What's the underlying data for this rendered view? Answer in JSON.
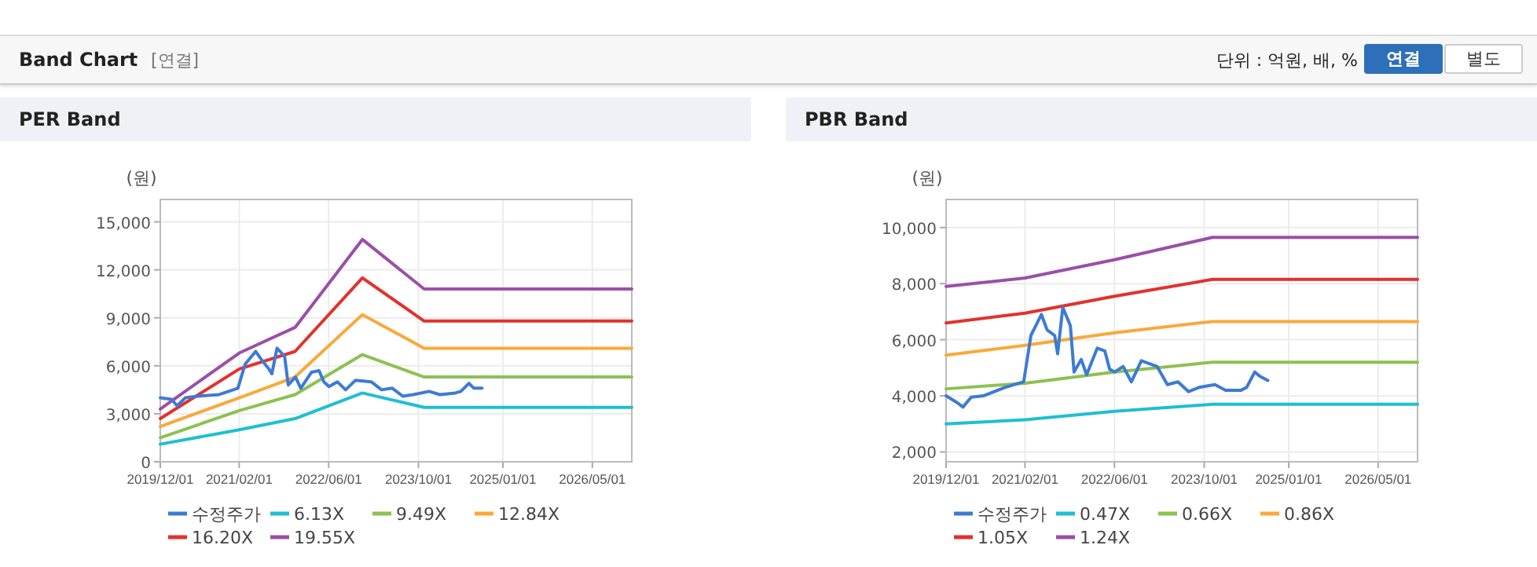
{
  "chart_data": [
    {
      "type": "other",
      "title": "Band Chart",
      "annotations": [
        "[연결]",
        "단위 : 억원, 배, %",
        "연결",
        "별도"
      ]
    },
    {
      "type": "line",
      "title": "PER Band",
      "ylabel": "(원)",
      "grid": true,
      "legend": "bottom",
      "line_style": "solid",
      "marker": "none",
      "xlim": [
        "2019-12-01",
        "2026-12-01"
      ],
      "xticks": [
        {
          "value": "2019-12-01",
          "label": "2019/12/01"
        },
        {
          "value": "2021-02-01",
          "label": "2021/02/01"
        },
        {
          "value": "2022-06-01",
          "label": "2022/06/01"
        },
        {
          "value": "2023-10-01",
          "label": "2023/10/01"
        },
        {
          "value": "2025-01-01",
          "label": "2025/01/01"
        },
        {
          "value": "2026-05-01",
          "label": "2026/05/01"
        }
      ],
      "ylim": [
        0,
        16400
      ],
      "yticks": [
        0,
        {
          "value": 3000,
          "label": "3,000"
        },
        {
          "value": 6000,
          "label": "6,000"
        },
        {
          "value": 9000,
          "label": "9,000"
        },
        {
          "value": 12000,
          "label": "12,000"
        },
        {
          "value": 15000,
          "label": "15,000"
        }
      ],
      "series": [
        {
          "name": "수정주가",
          "color": "#3d7bd4",
          "x": [
            "2019-12-01",
            "2020-02-01",
            "2020-03-01",
            "2020-04-15",
            "2020-06-20",
            "2020-10-15",
            "2021-01-25",
            "2021-03-05",
            "2021-05-01",
            "2021-06-01",
            "2021-07-12",
            "2021-07-28",
            "2021-08-25",
            "2021-10-05",
            "2021-10-25",
            "2021-12-03",
            "2022-01-01",
            "2022-02-28",
            "2022-04-10",
            "2022-05-06",
            "2022-06-03",
            "2022-07-18",
            "2022-09-01",
            "2022-10-25",
            "2023-01-18",
            "2023-03-15",
            "2023-05-12",
            "2023-07-08",
            "2023-09-03",
            "2023-11-28",
            "2024-01-25",
            "2024-04-18",
            "2024-05-18",
            "2024-07-01",
            "2024-07-28",
            "2024-09-10"
          ],
          "values": [
            4000,
            3900,
            3500,
            4000,
            4100,
            4200,
            4600,
            6100,
            6900,
            6400,
            5800,
            5500,
            7100,
            6600,
            4800,
            5300,
            4600,
            5600,
            5700,
            5000,
            4700,
            5000,
            4500,
            5100,
            5000,
            4500,
            4600,
            4100,
            4200,
            4400,
            4200,
            4300,
            4400,
            4900,
            4600,
            4600
          ]
        },
        {
          "name": "6.13X",
          "color": "#1fbfd0",
          "x": [
            "2019-12-01",
            "2021-02-01",
            "2021-12-01",
            "2022-12-01",
            "2023-11-01",
            "2026-12-01"
          ],
          "values": [
            1100,
            2000,
            2700,
            4300,
            3400,
            3400
          ]
        },
        {
          "name": "9.49X",
          "color": "#8cc152",
          "x": [
            "2019-12-01",
            "2021-02-01",
            "2021-12-01",
            "2022-12-01",
            "2023-11-01",
            "2026-12-01"
          ],
          "values": [
            1500,
            3200,
            4200,
            6700,
            5300,
            5300
          ]
        },
        {
          "name": "12.84X",
          "color": "#f9a93a",
          "x": [
            "2019-12-01",
            "2021-02-01",
            "2021-12-01",
            "2022-12-01",
            "2023-11-01",
            "2026-12-01"
          ],
          "values": [
            2200,
            4000,
            5300,
            9200,
            7100,
            7100
          ]
        },
        {
          "name": "16.20X",
          "color": "#e3312d",
          "x": [
            "2019-12-01",
            "2021-02-01",
            "2021-12-01",
            "2022-12-01",
            "2023-11-01",
            "2026-12-01"
          ],
          "values": [
            2700,
            5800,
            6900,
            11500,
            8800,
            8800
          ]
        },
        {
          "name": "19.55X",
          "color": "#9b4fa8",
          "x": [
            "2019-12-01",
            "2021-02-01",
            "2021-12-01",
            "2022-12-01",
            "2023-11-01",
            "2026-12-01"
          ],
          "values": [
            3300,
            6800,
            8400,
            13900,
            10800,
            10800
          ]
        }
      ]
    },
    {
      "type": "line",
      "title": "PBR Band",
      "ylabel": "(원)",
      "grid": true,
      "legend": "bottom",
      "line_style": "solid",
      "marker": "none",
      "xlim": [
        "2019-12-01",
        "2026-12-01"
      ],
      "xticks": [
        {
          "value": "2019-12-01",
          "label": "2019/12/01"
        },
        {
          "value": "2021-02-01",
          "label": "2021/02/01"
        },
        {
          "value": "2022-06-01",
          "label": "2022/06/01"
        },
        {
          "value": "2023-10-01",
          "label": "2023/10/01"
        },
        {
          "value": "2025-01-01",
          "label": "2025/01/01"
        },
        {
          "value": "2026-05-01",
          "label": "2026/05/01"
        }
      ],
      "ylim": [
        1650,
        11000
      ],
      "yticks": [
        {
          "value": 2000,
          "label": "2,000"
        },
        {
          "value": 4000,
          "label": "4,000"
        },
        {
          "value": 6000,
          "label": "6,000"
        },
        {
          "value": 8000,
          "label": "8,000"
        },
        {
          "value": 10000,
          "label": "10,000"
        }
      ],
      "series": [
        {
          "name": "수정주가",
          "color": "#3d7bd4",
          "x": [
            "2019-12-01",
            "2020-02-01",
            "2020-03-01",
            "2020-04-15",
            "2020-06-20",
            "2020-10-15",
            "2021-01-25",
            "2021-03-05",
            "2021-05-01",
            "2021-06-01",
            "2021-07-12",
            "2021-07-28",
            "2021-08-25",
            "2021-10-05",
            "2021-10-25",
            "2021-12-03",
            "2022-01-01",
            "2022-02-28",
            "2022-04-10",
            "2022-05-06",
            "2022-06-03",
            "2022-07-18",
            "2022-09-01",
            "2022-10-25",
            "2023-01-18",
            "2023-03-15",
            "2023-05-12",
            "2023-07-08",
            "2023-09-03",
            "2023-11-28",
            "2024-01-25",
            "2024-04-18",
            "2024-05-18",
            "2024-07-01",
            "2024-07-28",
            "2024-09-10"
          ],
          "values": [
            4000,
            3750,
            3600,
            3950,
            4000,
            4300,
            4500,
            6150,
            6900,
            6350,
            6150,
            5500,
            7150,
            6500,
            4850,
            5300,
            4750,
            5700,
            5600,
            4950,
            4850,
            5050,
            4500,
            5250,
            5050,
            4400,
            4500,
            4150,
            4300,
            4400,
            4200,
            4200,
            4300,
            4850,
            4700,
            4550
          ]
        },
        {
          "name": "0.47X",
          "color": "#1fbfd0",
          "x": [
            "2019-12-01",
            "2021-02-01",
            "2022-06-01",
            "2023-11-15",
            "2026-12-01"
          ],
          "values": [
            3000,
            3150,
            3450,
            3700,
            3700
          ]
        },
        {
          "name": "0.66X",
          "color": "#8cc152",
          "x": [
            "2019-12-01",
            "2021-02-01",
            "2022-06-01",
            "2023-11-15",
            "2026-12-01"
          ],
          "values": [
            4250,
            4450,
            4850,
            5200,
            5200
          ]
        },
        {
          "name": "0.86X",
          "color": "#f9a93a",
          "x": [
            "2019-12-01",
            "2021-02-01",
            "2022-06-01",
            "2023-11-15",
            "2026-12-01"
          ],
          "values": [
            5450,
            5800,
            6250,
            6650,
            6650
          ]
        },
        {
          "name": "1.05X",
          "color": "#e3312d",
          "x": [
            "2019-12-01",
            "2021-02-01",
            "2022-06-01",
            "2023-11-15",
            "2026-12-01"
          ],
          "values": [
            6600,
            6950,
            7550,
            8150,
            8150
          ]
        },
        {
          "name": "1.24X",
          "color": "#9b4fa8",
          "x": [
            "2019-12-01",
            "2021-02-01",
            "2022-06-01",
            "2023-11-15",
            "2026-12-01"
          ],
          "values": [
            7900,
            8200,
            8850,
            9650,
            9650
          ]
        }
      ]
    }
  ]
}
